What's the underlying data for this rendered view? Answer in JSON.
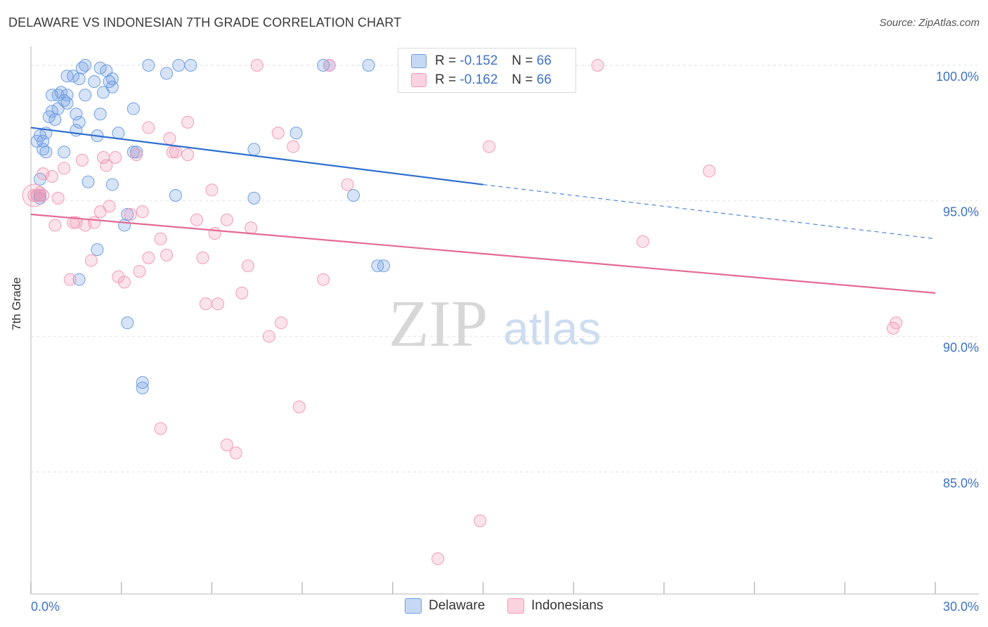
{
  "title": "DELAWARE VS INDONESIAN 7TH GRADE CORRELATION CHART",
  "source": "Source: ZipAtlas.com",
  "watermark": {
    "zip": "ZIP",
    "atlas": "atlas"
  },
  "colors": {
    "delaware": "#6f9ee3",
    "indonesians": "#f29bb6",
    "delaware_line": "#2e6fd0",
    "indonesians_line": "#e46a96",
    "tick_label": "#3f73c4"
  },
  "legend": {
    "rows": [
      {
        "r_label": "R =",
        "r_value": "-0.152",
        "n_label": "N =",
        "n_value": "66"
      },
      {
        "r_label": "R =",
        "r_value": "-0.162",
        "n_label": "N =",
        "n_value": "66"
      }
    ],
    "series_names": [
      "Delaware",
      "Indonesians"
    ]
  },
  "chart_data": {
    "type": "scatter",
    "xlabel": "",
    "ylabel": "7th Grade",
    "xlim": [
      0,
      30
    ],
    "ylim": [
      80.5,
      100.8
    ],
    "x_tick_labels": [
      "0.0%",
      "30.0%"
    ],
    "y_ticks": [
      85,
      90,
      95,
      100
    ],
    "y_tick_labels": [
      "85.0%",
      "90.0%",
      "95.0%",
      "100.0%"
    ],
    "series": [
      {
        "name": "Delaware",
        "trend": {
          "x0": 0,
          "y0": 97.7,
          "x1": 15.0,
          "y1": 95.6,
          "dash_to_x": 30,
          "dash_to_y": 93.6
        },
        "points": [
          [
            0.2,
            97.2
          ],
          [
            0.3,
            97.4
          ],
          [
            0.4,
            97.2
          ],
          [
            0.5,
            96.8
          ],
          [
            0.4,
            96.9
          ],
          [
            0.3,
            95.2
          ],
          [
            0.3,
            95.8
          ],
          [
            0.5,
            97.5
          ],
          [
            0.6,
            98.1
          ],
          [
            0.7,
            98.3
          ],
          [
            0.8,
            98.0
          ],
          [
            0.9,
            98.4
          ],
          [
            0.7,
            98.9
          ],
          [
            0.9,
            98.9
          ],
          [
            1.0,
            99.0
          ],
          [
            1.1,
            98.7
          ],
          [
            1.2,
            98.6
          ],
          [
            1.2,
            99.6
          ],
          [
            1.4,
            99.6
          ],
          [
            1.6,
            99.5
          ],
          [
            1.7,
            99.9
          ],
          [
            1.8,
            100.0
          ],
          [
            1.5,
            98.2
          ],
          [
            1.6,
            97.9
          ],
          [
            1.8,
            98.9
          ],
          [
            2.1,
            99.4
          ],
          [
            2.3,
            98.2
          ],
          [
            2.3,
            99.9
          ],
          [
            2.5,
            99.8
          ],
          [
            2.6,
            99.4
          ],
          [
            2.7,
            99.5
          ],
          [
            2.7,
            99.2
          ],
          [
            2.4,
            99.0
          ],
          [
            2.2,
            97.4
          ],
          [
            1.5,
            97.6
          ],
          [
            1.1,
            96.8
          ],
          [
            1.9,
            95.7
          ],
          [
            2.7,
            95.6
          ],
          [
            2.9,
            97.5
          ],
          [
            3.4,
            98.4
          ],
          [
            3.2,
            94.5
          ],
          [
            3.1,
            94.1
          ],
          [
            2.2,
            93.2
          ],
          [
            1.6,
            92.1
          ],
          [
            3.2,
            90.5
          ],
          [
            3.7,
            88.3
          ],
          [
            3.7,
            88.1
          ],
          [
            3.9,
            100.0
          ],
          [
            4.5,
            99.7
          ],
          [
            4.9,
            100.0
          ],
          [
            5.3,
            100.0
          ],
          [
            4.8,
            95.2
          ],
          [
            3.5,
            96.8
          ],
          [
            3.4,
            96.8
          ],
          [
            7.4,
            96.9
          ],
          [
            7.4,
            95.1
          ],
          [
            8.8,
            97.5
          ],
          [
            9.7,
            100.0
          ],
          [
            9.9,
            100.0
          ],
          [
            11.2,
            100.0
          ],
          [
            10.7,
            95.2
          ],
          [
            11.5,
            92.6
          ],
          [
            11.7,
            92.6
          ],
          [
            0.2,
            95.2
          ],
          [
            0.3,
            95.1
          ],
          [
            1.2,
            98.9
          ]
        ]
      },
      {
        "name": "Indonesians",
        "trend": {
          "x0": 0,
          "y0": 94.5,
          "x1": 30,
          "y1": 91.6
        },
        "points": [
          [
            0.1,
            95.2
          ],
          [
            0.3,
            95.3
          ],
          [
            0.4,
            95.2
          ],
          [
            0.4,
            96.0
          ],
          [
            0.7,
            95.9
          ],
          [
            0.8,
            94.1
          ],
          [
            0.9,
            95.1
          ],
          [
            1.1,
            96.2
          ],
          [
            1.3,
            92.1
          ],
          [
            1.4,
            94.2
          ],
          [
            1.5,
            94.2
          ],
          [
            1.7,
            96.5
          ],
          [
            1.8,
            94.1
          ],
          [
            2.0,
            92.8
          ],
          [
            2.1,
            94.2
          ],
          [
            2.3,
            94.6
          ],
          [
            2.4,
            96.6
          ],
          [
            2.5,
            96.3
          ],
          [
            2.6,
            94.8
          ],
          [
            2.8,
            96.6
          ],
          [
            2.9,
            92.2
          ],
          [
            3.1,
            92.0
          ],
          [
            3.3,
            94.5
          ],
          [
            3.5,
            96.7
          ],
          [
            3.6,
            92.4
          ],
          [
            3.7,
            94.6
          ],
          [
            3.9,
            92.9
          ],
          [
            3.9,
            97.7
          ],
          [
            4.3,
            93.6
          ],
          [
            4.5,
            93.0
          ],
          [
            4.6,
            97.3
          ],
          [
            4.7,
            96.8
          ],
          [
            4.8,
            96.8
          ],
          [
            5.2,
            96.7
          ],
          [
            5.2,
            97.9
          ],
          [
            5.5,
            94.3
          ],
          [
            5.7,
            92.9
          ],
          [
            5.8,
            91.2
          ],
          [
            6.0,
            95.4
          ],
          [
            6.1,
            93.8
          ],
          [
            6.2,
            91.2
          ],
          [
            6.5,
            86.0
          ],
          [
            6.5,
            94.3
          ],
          [
            6.8,
            85.7
          ],
          [
            7.0,
            91.6
          ],
          [
            7.2,
            92.6
          ],
          [
            7.3,
            94.0
          ],
          [
            7.5,
            100.0
          ],
          [
            7.9,
            90.0
          ],
          [
            8.2,
            97.5
          ],
          [
            8.3,
            90.5
          ],
          [
            8.7,
            97.0
          ],
          [
            8.9,
            87.4
          ],
          [
            4.3,
            86.6
          ],
          [
            9.7,
            92.1
          ],
          [
            10.5,
            95.6
          ],
          [
            9.9,
            100.0
          ],
          [
            13.5,
            81.8
          ],
          [
            14.9,
            83.2
          ],
          [
            15.2,
            97.0
          ],
          [
            18.8,
            100.0
          ],
          [
            20.3,
            93.5
          ],
          [
            22.5,
            96.1
          ],
          [
            28.6,
            90.3
          ],
          [
            28.7,
            90.5
          ],
          [
            0.2,
            95.2
          ]
        ]
      }
    ]
  }
}
